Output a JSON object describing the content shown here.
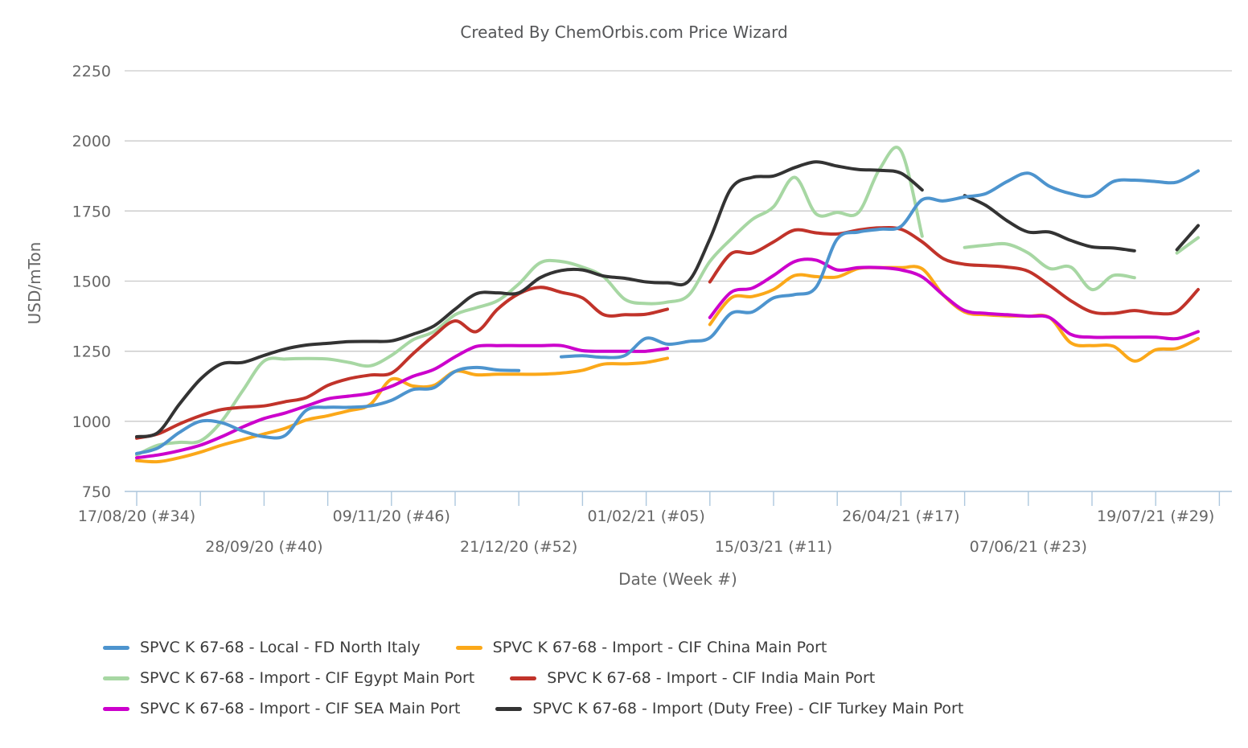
{
  "chart_data": {
    "type": "line",
    "title": "Created By ChemOrbis.com Price Wizard",
    "xlabel": "Date (Week #)",
    "ylabel": "USD/mTon",
    "ylim": [
      750,
      2250
    ],
    "yticks": [
      750,
      1000,
      1250,
      1500,
      1750,
      2000,
      2250
    ],
    "grid": "horizontal",
    "legend_position": "bottom",
    "x_axis": {
      "start_label": "17/08/20 (#34)",
      "end_label": "19/07/21 (#29)",
      "tick_interval_weeks": 3,
      "labels": [
        {
          "week": 0,
          "text": "17/08/20 (#34)",
          "row": 1
        },
        {
          "week": 6,
          "text": "28/09/20 (#40)",
          "row": 2
        },
        {
          "week": 12,
          "text": "09/11/20 (#46)",
          "row": 1
        },
        {
          "week": 18,
          "text": "21/12/20 (#52)",
          "row": 2
        },
        {
          "week": 24,
          "text": "01/02/21 (#05)",
          "row": 1
        },
        {
          "week": 30,
          "text": "15/03/21 (#11)",
          "row": 2
        },
        {
          "week": 36,
          "text": "26/04/21 (#17)",
          "row": 1
        },
        {
          "week": 42,
          "text": "07/06/21 (#23)",
          "row": 2
        },
        {
          "week": 48,
          "text": "19/07/21 (#29)",
          "row": 1
        }
      ]
    },
    "series": [
      {
        "name": "SPVC K 67-68 - Local - FD North Italy",
        "color": "#4D94CE",
        "values": [
          885,
          905,
          960,
          1000,
          995,
          965,
          945,
          950,
          1040,
          1050,
          1050,
          1055,
          1075,
          1113,
          1120,
          1178,
          1192,
          1183,
          1181,
          null,
          1230,
          1234,
          1228,
          1235,
          1296,
          1275,
          1285,
          1298,
          1385,
          1390,
          1440,
          1452,
          1478,
          1650,
          1675,
          1685,
          1695,
          1790,
          1786,
          1800,
          1812,
          1855,
          1885,
          1838,
          1812,
          1804,
          1855,
          1860,
          1855,
          1853,
          1893
        ]
      },
      {
        "name": "SPVC K 67-68 - Import - CIF China Main Port",
        "color": "#FBA819",
        "values": [
          860,
          856,
          870,
          890,
          915,
          935,
          955,
          975,
          1005,
          1020,
          1038,
          1060,
          1150,
          1126,
          1128,
          1178,
          1166,
          1168,
          1168,
          1168,
          1172,
          1182,
          1204,
          1205,
          1210,
          1225,
          null,
          1345,
          1440,
          1445,
          1470,
          1520,
          1516,
          1515,
          1545,
          1548,
          1548,
          1544,
          1450,
          1390,
          1380,
          1376,
          1375,
          1370,
          1280,
          1270,
          1268,
          1215,
          1255,
          1260,
          1295
        ]
      },
      {
        "name": "SPVC K 67-68 - Import - CIF Egypt Main Port",
        "color": "#A7D7A3",
        "values": [
          880,
          915,
          925,
          930,
          1000,
          1110,
          1215,
          1222,
          1224,
          1222,
          1210,
          1198,
          1235,
          1290,
          1320,
          1380,
          1405,
          1430,
          1490,
          1565,
          1570,
          1550,
          1515,
          1435,
          1420,
          1425,
          1450,
          1570,
          1650,
          1720,
          1765,
          1870,
          1740,
          1745,
          1745,
          1900,
          1965,
          1660,
          null,
          1620,
          1628,
          1632,
          1600,
          1545,
          1550,
          1470,
          1520,
          1512,
          null,
          1600,
          1655
        ]
      },
      {
        "name": "SPVC K 67-68 - Import - CIF India Main Port",
        "color": "#C1332A",
        "values": [
          940,
          955,
          990,
          1020,
          1042,
          1050,
          1055,
          1070,
          1085,
          1128,
          1152,
          1165,
          1172,
          1240,
          1305,
          1358,
          1320,
          1400,
          1455,
          1478,
          1460,
          1440,
          1380,
          1380,
          1382,
          1400,
          null,
          1497,
          1598,
          1600,
          1640,
          1682,
          1672,
          1668,
          1682,
          1690,
          1685,
          1640,
          1580,
          1560,
          1555,
          1550,
          1535,
          1485,
          1430,
          1390,
          1385,
          1395,
          1385,
          1392,
          1470
        ]
      },
      {
        "name": "SPVC K 67-68 - Import - CIF SEA Main Port",
        "color": "#CC00CC",
        "values": [
          870,
          880,
          895,
          915,
          945,
          980,
          1010,
          1030,
          1055,
          1080,
          1090,
          1100,
          1125,
          1160,
          1185,
          1230,
          1267,
          1270,
          1270,
          1270,
          1270,
          1252,
          1250,
          1250,
          1250,
          1260,
          null,
          1370,
          1460,
          1475,
          1520,
          1570,
          1575,
          1540,
          1548,
          1548,
          1540,
          1515,
          1450,
          1395,
          1385,
          1380,
          1375,
          1370,
          1310,
          1300,
          1300,
          1300,
          1300,
          1295,
          1320
        ]
      },
      {
        "name": "SPVC K 67-68 - Import (Duty Free) - CIF Turkey Main Port",
        "color": "#333333",
        "values": [
          945,
          960,
          1060,
          1150,
          1205,
          1210,
          1235,
          1258,
          1272,
          1278,
          1284,
          1285,
          1287,
          1310,
          1340,
          1400,
          1455,
          1458,
          1458,
          1512,
          1538,
          1540,
          1518,
          1510,
          1497,
          1494,
          1500,
          1650,
          1830,
          1870,
          1875,
          1905,
          1925,
          1910,
          1898,
          1895,
          1885,
          1825,
          null,
          1805,
          1770,
          1715,
          1675,
          1675,
          1645,
          1622,
          1618,
          1608,
          null,
          1612,
          1698
        ]
      }
    ],
    "colors": {
      "gridline": "#C9C9C9",
      "axis_line": "#AEC8DE",
      "tick_text": "#666666",
      "title_text": "#545557"
    }
  },
  "legend_rows": [
    [
      0,
      1
    ],
    [
      2,
      3
    ],
    [
      4,
      5
    ]
  ]
}
